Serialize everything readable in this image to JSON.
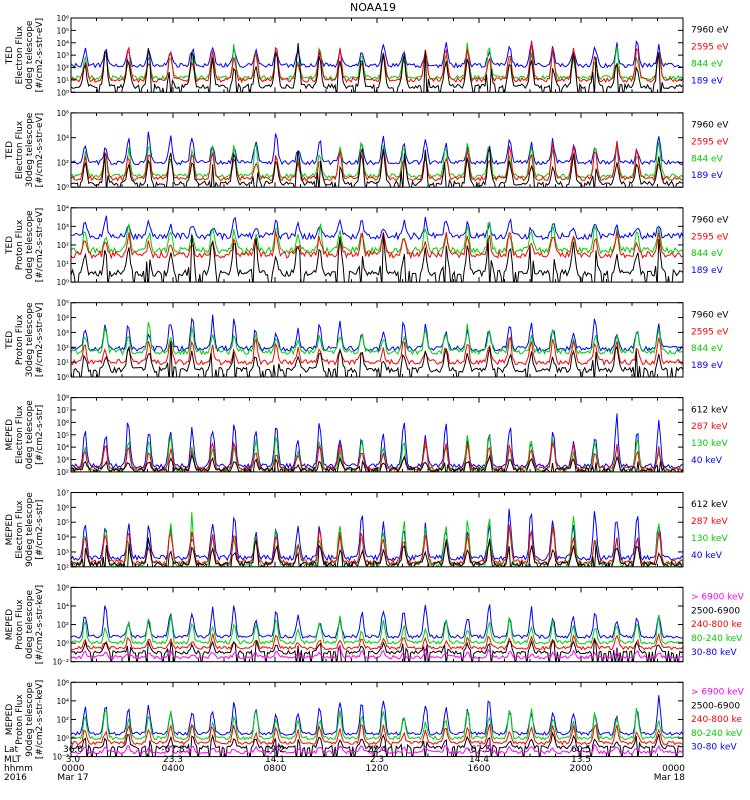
{
  "chart_data": {
    "type": "line",
    "title": "NOAA19",
    "colors": {
      "blue": "#0000ff",
      "red": "#ff0000",
      "green": "#00d000",
      "black": "#000000",
      "magenta": "#ff00ff"
    },
    "panels": [
      {
        "ylabel_lines": [
          "TED",
          "Electron Flux",
          "0deg telescope",
          "[#/cm2-s-str-eV]"
        ],
        "ylim": [
          1,
          1000000
        ],
        "ticks": [
          {
            "value": 1,
            "label": "10⁰"
          },
          {
            "value": 10,
            "label": "10¹"
          },
          {
            "value": 100,
            "label": "10²"
          },
          {
            "value": 1000,
            "label": "10³"
          },
          {
            "value": 10000,
            "label": "10⁴"
          },
          {
            "value": 100000,
            "label": "10⁵"
          },
          {
            "value": 1000000,
            "label": "10⁶"
          }
        ],
        "series": [
          {
            "name": "7960 eV",
            "color": "black",
            "base": 3,
            "peak": 20000
          },
          {
            "name": "2595 eV",
            "color": "red",
            "base": 10,
            "peak": 20000
          },
          {
            "name": "844 eV",
            "color": "green",
            "base": 15,
            "peak": 30000
          },
          {
            "name": "189 eV",
            "color": "blue",
            "base": 150,
            "peak": 50000
          }
        ]
      },
      {
        "ylabel_lines": [
          "TED",
          "Electron Flux",
          "30deg telescope",
          "[#/cm2-s-str-eV]"
        ],
        "ylim": [
          1,
          1000000
        ],
        "ticks": [
          {
            "value": 1,
            "label": "10⁰"
          },
          {
            "value": 100,
            "label": "10²"
          },
          {
            "value": 10000,
            "label": "10⁴"
          },
          {
            "value": 1000000,
            "label": "10⁶"
          }
        ],
        "series": [
          {
            "name": "7960 eV",
            "color": "black",
            "base": 2,
            "peak": 5000
          },
          {
            "name": "2595 eV",
            "color": "red",
            "base": 5,
            "peak": 10000
          },
          {
            "name": "844 eV",
            "color": "green",
            "base": 8,
            "peak": 20000
          },
          {
            "name": "189 eV",
            "color": "blue",
            "base": 100,
            "peak": 50000
          }
        ]
      },
      {
        "ylabel_lines": [
          "TED",
          "Proton Flux",
          "0deg telescope",
          "[#/cm2-s-str-eV]"
        ],
        "ylim": [
          1,
          10000
        ],
        "ticks": [
          {
            "value": 1,
            "label": "10⁰"
          },
          {
            "value": 10,
            "label": "10¹"
          },
          {
            "value": 100,
            "label": "10²"
          },
          {
            "value": 1000,
            "label": "10³"
          },
          {
            "value": 10000,
            "label": "10⁴"
          }
        ],
        "series": [
          {
            "name": "7960 eV",
            "color": "black",
            "base": 3,
            "peak": 500
          },
          {
            "name": "2595 eV",
            "color": "red",
            "base": 30,
            "peak": 1000
          },
          {
            "name": "844 eV",
            "color": "green",
            "base": 50,
            "peak": 3000
          },
          {
            "name": "189 eV",
            "color": "blue",
            "base": 300,
            "peak": 5000
          }
        ]
      },
      {
        "ylabel_lines": [
          "TED",
          "Proton Flux",
          "30deg telescope",
          "[#/cm2-s-str-eV]"
        ],
        "ylim": [
          1,
          100000
        ],
        "ticks": [
          {
            "value": 1,
            "label": "10⁰"
          },
          {
            "value": 10,
            "label": "10¹"
          },
          {
            "value": 100,
            "label": "10²"
          },
          {
            "value": 1000,
            "label": "10³"
          },
          {
            "value": 10000,
            "label": "10⁴"
          },
          {
            "value": 100000,
            "label": "10⁵"
          }
        ],
        "series": [
          {
            "name": "7960 eV",
            "color": "black",
            "base": 3,
            "peak": 300
          },
          {
            "name": "2595 eV",
            "color": "red",
            "base": 10,
            "peak": 1000
          },
          {
            "name": "844 eV",
            "color": "green",
            "base": 50,
            "peak": 5000
          },
          {
            "name": "189 eV",
            "color": "blue",
            "base": 80,
            "peak": 20000
          }
        ]
      },
      {
        "ylabel_lines": [
          "MEPED",
          "Electron Flux",
          "0deg telescope",
          "[#/cm2-s-str]"
        ],
        "ylim": [
          100,
          100000000
        ],
        "ticks": [
          {
            "value": 100,
            "label": "10²"
          },
          {
            "value": 1000,
            "label": "10³"
          },
          {
            "value": 10000,
            "label": "10⁴"
          },
          {
            "value": 100000,
            "label": "10⁵"
          },
          {
            "value": 1000000,
            "label": "10⁶"
          },
          {
            "value": 10000000,
            "label": "10⁷"
          },
          {
            "value": 100000000,
            "label": "10⁸"
          }
        ],
        "series": [
          {
            "name": "612 keV",
            "color": "black",
            "base": 150,
            "peak": 3000
          },
          {
            "name": "287 keV",
            "color": "red",
            "base": 180,
            "peak": 100000
          },
          {
            "name": "130 keV",
            "color": "green",
            "base": 150,
            "peak": 300000
          },
          {
            "name": "40 keV",
            "color": "blue",
            "base": 300,
            "peak": 10000000
          }
        ]
      },
      {
        "ylabel_lines": [
          "MEPED",
          "Electron Flux",
          "90deg telescope",
          "[#/cm2-s-str]"
        ],
        "ylim": [
          100,
          10000000
        ],
        "ticks": [
          {
            "value": 100,
            "label": "10²"
          },
          {
            "value": 1000,
            "label": "10³"
          },
          {
            "value": 10000,
            "label": "10⁴"
          },
          {
            "value": 100000,
            "label": "10⁵"
          },
          {
            "value": 1000000,
            "label": "10⁶"
          },
          {
            "value": 10000000,
            "label": "10⁷"
          }
        ],
        "series": [
          {
            "name": "612 keV",
            "color": "black",
            "base": 150,
            "peak": 10000
          },
          {
            "name": "287 keV",
            "color": "red",
            "base": 200,
            "peak": 100000
          },
          {
            "name": "130 keV",
            "color": "green",
            "base": 150,
            "peak": 1000000
          },
          {
            "name": "40 keV",
            "color": "blue",
            "base": 400,
            "peak": 5000000
          }
        ]
      },
      {
        "ylabel_lines": [
          "MEPED",
          "Proton Flux",
          "0deg telescope",
          "[#/cm2-s-str-keV]"
        ],
        "ylim": [
          0.01,
          1000000
        ],
        "ticks": [
          {
            "value": 0.01,
            "label": "10⁻²"
          },
          {
            "value": 1,
            "label": "10⁰"
          },
          {
            "value": 100,
            "label": "10²"
          },
          {
            "value": 10000,
            "label": "10⁴"
          },
          {
            "value": 1000000,
            "label": "10⁶"
          }
        ],
        "series": [
          {
            "name": "> 6900 keV",
            "color": "magenta",
            "base": 0.03,
            "peak": 0.3
          },
          {
            "name": "2500-6900",
            "color": "black",
            "base": 0.1,
            "peak": 5
          },
          {
            "name": "240-800 ke",
            "color": "red",
            "base": 0.3,
            "peak": 10
          },
          {
            "name": "80-240 keV",
            "color": "green",
            "base": 1.2,
            "peak": 3000
          },
          {
            "name": "30-80 keV",
            "color": "blue",
            "base": 5,
            "peak": 50000
          }
        ]
      },
      {
        "ylabel_lines": [
          "MEPED",
          "Proton Flux",
          "90deg telescope",
          "[#/cm2-s-str-keV]"
        ],
        "ylim": [
          0.01,
          1000000
        ],
        "ticks": [
          {
            "value": 0.01,
            "label": "10⁻²"
          },
          {
            "value": 1,
            "label": "10⁰"
          },
          {
            "value": 100,
            "label": "10²"
          },
          {
            "value": 10000,
            "label": "10⁴"
          },
          {
            "value": 1000000,
            "label": "10⁶"
          }
        ],
        "series": [
          {
            "name": "> 6900 keV",
            "color": "magenta",
            "base": 0.03,
            "peak": 0.3
          },
          {
            "name": "2500-6900",
            "color": "black",
            "base": 0.1,
            "peak": 5
          },
          {
            "name": "240-800 ke",
            "color": "red",
            "base": 0.3,
            "peak": 100
          },
          {
            "name": "80-240 keV",
            "color": "green",
            "base": 1,
            "peak": 10000
          },
          {
            "name": "30-80 keV",
            "color": "blue",
            "base": 3,
            "peak": 100000
          }
        ]
      }
    ],
    "x_axis": {
      "range_hours": [
        0,
        24
      ],
      "row_labels": [
        "Lat",
        "MLT",
        "hhmm",
        "2016"
      ],
      "ticks": [
        {
          "hour": 0,
          "lat": "36.0",
          "mlt": "3.0",
          "hhmm": "0000",
          "date": "Mar 17"
        },
        {
          "hour": 4,
          "lat": "-67.8",
          "mlt": "23.3",
          "hhmm": "0400",
          "date": ""
        },
        {
          "hour": 8,
          "lat": "19.2",
          "mlt": "14.1",
          "hhmm": "0800",
          "date": ""
        },
        {
          "hour": 12,
          "lat": "25.4",
          "mlt": "2.3",
          "hhmm": "1200",
          "date": ""
        },
        {
          "hour": 16,
          "lat": "-67.5",
          "mlt": "14.4",
          "hhmm": "1600",
          "date": ""
        },
        {
          "hour": 20,
          "lat": "60.5",
          "mlt": "13.5",
          "hhmm": "2000",
          "date": ""
        },
        {
          "hour": 24,
          "lat": "",
          "mlt": "",
          "hhmm": "0000",
          "date": "Mar 18"
        }
      ]
    },
    "pass_times_hours": [
      0.55,
      1.35,
      2.25,
      3.05,
      3.9,
      4.75,
      5.55,
      6.4,
      7.25,
      8.05,
      8.9,
      9.75,
      10.55,
      11.4,
      12.25,
      13.05,
      13.9,
      14.7,
      15.55,
      16.4,
      17.2,
      18.05,
      18.9,
      19.7,
      20.55,
      21.4,
      22.2,
      23.05
    ]
  }
}
